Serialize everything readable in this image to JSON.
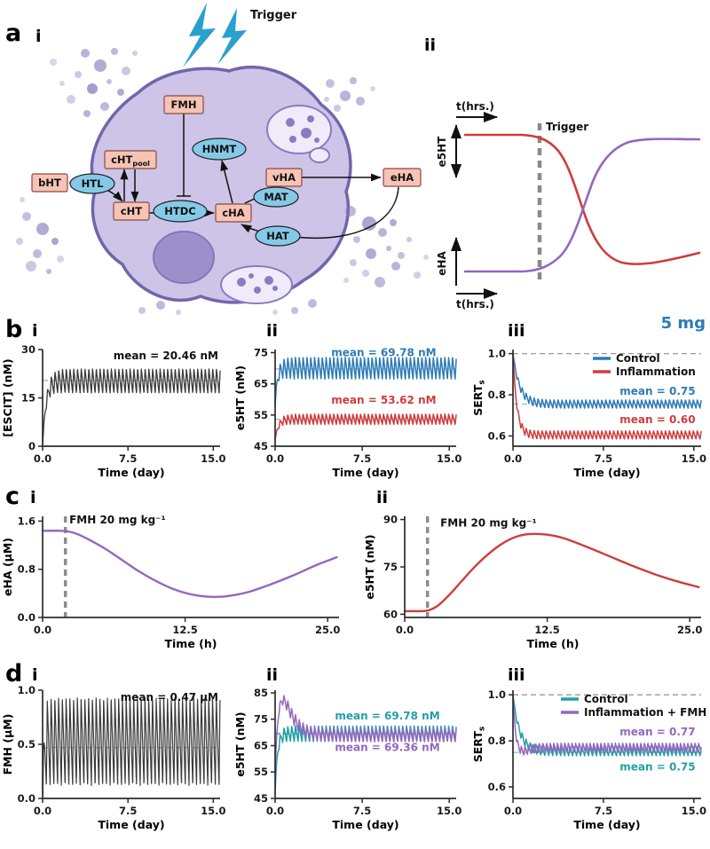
{
  "labels": {
    "a": "a",
    "b": "b",
    "c": "c",
    "d": "d",
    "i": "i",
    "ii": "ii",
    "iii": "iii",
    "dose": "5 mg"
  },
  "panel_a": {
    "trigger": "Trigger",
    "nodes": {
      "bHT": "bHT",
      "HTL": "HTL",
      "cHT": "cHT",
      "cHTpool_main": "cHT",
      "cHTpool_sub": "pool",
      "FMH": "FMH",
      "HNMT": "HNMT",
      "HTDC": "HTDC",
      "cHA": "cHA",
      "MAT": "MAT",
      "vHA": "vHA",
      "eHA": "eHA",
      "HAT": "HAT"
    },
    "schematic": {
      "t_top": "t(hrs.)",
      "y_top": "e5HT",
      "trigger": "Trigger",
      "y_bottom": "eHA",
      "t_bottom": "t(hrs.)"
    }
  },
  "chart_data": [
    {
      "id": "b-i",
      "type": "line",
      "xlabel": "Time (day)",
      "ylabel": "[ESCIT] (nM)",
      "xlim": [
        0,
        15.6
      ],
      "ylim": [
        0,
        30
      ],
      "xticks": [
        [
          0,
          "0.0"
        ],
        [
          7.5,
          "7.5"
        ],
        [
          15,
          "15.0"
        ]
      ],
      "yticks": [
        [
          0,
          "0"
        ],
        [
          15,
          "15"
        ],
        [
          30,
          "30"
        ]
      ],
      "hrefs": [
        {
          "y": 20.46,
          "color": "#8fbcdc"
        }
      ],
      "series": [
        {
          "name": "escitalopram",
          "color": "#3a3a3a",
          "w": 1.3,
          "osc": {
            "start": 0,
            "tau": 0.3,
            "env_tau": 0.5,
            "lo": 16.5,
            "hi": 24,
            "period": 0.33,
            "rise": 0.3
          }
        }
      ],
      "annotations": [
        {
          "text": "mean = 20.46 nM",
          "color": "#111111",
          "xf": 0.99,
          "yf": 0.1,
          "anchor": "end"
        }
      ]
    },
    {
      "id": "b-ii",
      "type": "line",
      "xlabel": "Time (day)",
      "ylabel": "e5HT (nM)",
      "xlim": [
        0,
        15.6
      ],
      "ylim": [
        45,
        76
      ],
      "xticks": [
        [
          0,
          "0.0"
        ],
        [
          7.5,
          "7.5"
        ],
        [
          15,
          "15.0"
        ]
      ],
      "yticks": [
        [
          45,
          "45"
        ],
        [
          55,
          "55"
        ],
        [
          65,
          "65"
        ],
        [
          75,
          "75"
        ]
      ],
      "hrefs": [
        {
          "y": 69.78,
          "color": "#8fbcdc"
        },
        {
          "y": 53.62,
          "color": "#8fbcdc"
        }
      ],
      "series": [
        {
          "name": "control",
          "color": "#2d7bb6",
          "w": 1.5,
          "osc": {
            "start": 58,
            "tau": 0.18,
            "env_tau": 0.35,
            "lo": 66.5,
            "hi": 73.5,
            "period": 0.33,
            "rise": 0.3
          }
        },
        {
          "name": "inflammation",
          "color": "#d13b3c",
          "w": 1.5,
          "osc": {
            "start": 47,
            "tau": 0.28,
            "env_tau": 0.4,
            "lo": 52,
            "hi": 55.3,
            "period": 0.33,
            "rise": 0.3
          }
        }
      ],
      "annotations": [
        {
          "text": "mean = 69.78 nM",
          "color": "#2d7bb6",
          "xf": 0.6,
          "yf": 0.07,
          "anchor": "middle"
        },
        {
          "text": "mean = 53.62 nM",
          "color": "#d13b3c",
          "xf": 0.6,
          "yf": 0.56,
          "anchor": "middle"
        }
      ]
    },
    {
      "id": "b-iii",
      "type": "line",
      "xlabel": "Time (day)",
      "ylabel": "SERT",
      "ylabel_sub": "s",
      "xlim": [
        0,
        15.6
      ],
      "ylim": [
        0.55,
        1.02
      ],
      "xticks": [
        [
          0,
          "0.0"
        ],
        [
          7.5,
          "7.5"
        ],
        [
          15,
          "15.0"
        ]
      ],
      "yticks": [
        [
          0.6,
          "0.6"
        ],
        [
          0.8,
          "0.8"
        ],
        [
          1.0,
          "1.0"
        ]
      ],
      "hrefs": [
        {
          "y": 1.0,
          "color": "#9a9a9a"
        },
        {
          "y": 0.755,
          "color": "#8fbcdc"
        }
      ],
      "series": [
        {
          "name": "control",
          "color": "#2d7bb6",
          "w": 1.5,
          "osc": {
            "start": 1.0,
            "tau": 0.55,
            "env_tau": 0.3,
            "lo": 0.735,
            "hi": 0.775,
            "period": 0.33,
            "rise": 0.3
          }
        },
        {
          "name": "inflammation",
          "color": "#d13b3c",
          "w": 1.5,
          "osc": {
            "start": 1.0,
            "tau": 0.32,
            "env_tau": 0.3,
            "lo": 0.585,
            "hi": 0.625,
            "period": 0.33,
            "rise": 0.3
          }
        }
      ],
      "annotations": [
        {
          "text": "mean = 0.75",
          "color": "#2d7bb6",
          "xf": 0.97,
          "yf": 0.47,
          "anchor": "end"
        },
        {
          "text": "mean = 0.60",
          "color": "#d13b3c",
          "xf": 0.97,
          "yf": 0.76,
          "anchor": "end"
        }
      ],
      "legend": {
        "w": 122,
        "items": [
          {
            "label": "Control",
            "color": "#2d7bb6"
          },
          {
            "label": "Inflammation",
            "color": "#d13b3c"
          }
        ]
      }
    },
    {
      "id": "c-i",
      "type": "line",
      "xlabel": "Time (h)",
      "ylabel": "eHA (µM)",
      "xlim": [
        0,
        26
      ],
      "ylim": [
        0,
        1.68
      ],
      "xticks": [
        [
          0,
          "0.0"
        ],
        [
          12.5,
          "12.5"
        ],
        [
          25,
          "25.0"
        ]
      ],
      "yticks": [
        [
          0,
          "0.0"
        ],
        [
          0.8,
          "0.8"
        ],
        [
          1.6,
          "1.6"
        ]
      ],
      "vrefs": [
        {
          "x": 2,
          "color": "#8c8c8c"
        }
      ],
      "series": [
        {
          "name": "eHA",
          "color": "#9467bd",
          "w": 2.4,
          "smooth": true,
          "pts": {
            "x": [
              0,
              1.5,
              2.2,
              3,
              4,
              5.5,
              7,
              8.5,
              10,
              11.5,
              13,
              14.5,
              16,
              18,
              20,
              22,
              24,
              25.8
            ],
            "y": [
              1.44,
              1.44,
              1.43,
              1.39,
              1.3,
              1.14,
              0.95,
              0.76,
              0.6,
              0.47,
              0.385,
              0.345,
              0.35,
              0.42,
              0.55,
              0.7,
              0.87,
              1.0
            ]
          }
        }
      ],
      "annotations": [
        {
          "text": "FMH 20 mg kg⁻¹",
          "color": "#111111",
          "xf": 0.09,
          "yf": 0.07,
          "anchor": "start"
        }
      ]
    },
    {
      "id": "c-ii",
      "type": "line",
      "xlabel": "Time (h)",
      "ylabel": "e5HT (nM)",
      "xlim": [
        0,
        26
      ],
      "ylim": [
        59,
        91
      ],
      "xticks": [
        [
          0,
          "0.0"
        ],
        [
          12.5,
          "12.5"
        ],
        [
          25,
          "25.0"
        ]
      ],
      "yticks": [
        [
          60,
          "60"
        ],
        [
          75,
          "75"
        ],
        [
          90,
          "90"
        ]
      ],
      "vrefs": [
        {
          "x": 2,
          "color": "#8c8c8c"
        }
      ],
      "series": [
        {
          "name": "e5HT",
          "color": "#d13b3c",
          "w": 2.4,
          "smooth": true,
          "pts": {
            "x": [
              0,
              1.5,
              2.2,
              3,
              4,
              5,
              6,
              7,
              8,
              9,
              10,
              11,
              12.5,
              14,
              16,
              18,
              20,
              22,
              24,
              25.8
            ],
            "y": [
              61,
              61,
              61.4,
              63,
              66.5,
              70.5,
              74.5,
              78,
              81,
              83.3,
              84.8,
              85.4,
              85.2,
              84,
              81.3,
              78.3,
              75.3,
              72.6,
              70.3,
              68.6
            ]
          }
        }
      ],
      "annotations": [
        {
          "text": "FMH 20 mg kg⁻¹",
          "color": "#111111",
          "xf": 0.12,
          "yf": 0.1,
          "anchor": "start"
        }
      ]
    },
    {
      "id": "d-i",
      "type": "line",
      "xlabel": "Time (day)",
      "ylabel": "FMH (µM)",
      "xlim": [
        0,
        15.6
      ],
      "ylim": [
        0,
        1.0
      ],
      "xticks": [
        [
          0,
          "0.0"
        ],
        [
          7.5,
          "7.5"
        ],
        [
          15,
          "15.0"
        ]
      ],
      "yticks": [
        [
          0,
          "0.0"
        ],
        [
          0.5,
          "0.5"
        ],
        [
          1.0,
          "1.0"
        ]
      ],
      "hrefs": [
        {
          "y": 0.47,
          "color": "#8fbcdc"
        }
      ],
      "series": [
        {
          "name": "FMH",
          "color": "#3a3a3a",
          "w": 1.2,
          "osc": {
            "start": 0,
            "tau": 0.12,
            "env_tau": 0.12,
            "lo": 0.12,
            "hi": 0.93,
            "period": 0.33,
            "rise": 0.25
          }
        }
      ],
      "annotations": [
        {
          "text": "mean = 0.47 µM",
          "color": "#111111",
          "xf": 0.99,
          "yf": 0.1,
          "anchor": "end"
        }
      ]
    },
    {
      "id": "d-ii",
      "type": "line",
      "xlabel": "Time (day)",
      "ylabel": "e5HT (nM)",
      "xlim": [
        0,
        15.6
      ],
      "ylim": [
        45,
        86
      ],
      "xticks": [
        [
          0,
          "0.0"
        ],
        [
          7.5,
          "7.5"
        ],
        [
          15,
          "15.0"
        ]
      ],
      "yticks": [
        [
          45,
          "45"
        ],
        [
          55,
          "55"
        ],
        [
          65,
          "65"
        ],
        [
          75,
          "75"
        ],
        [
          85,
          "85"
        ]
      ],
      "hrefs": [
        {
          "y": 69.78,
          "color": "#8fbcdc"
        },
        {
          "y": 69.36,
          "color": "#9a9a9a"
        }
      ],
      "series": [
        {
          "name": "control",
          "color": "#21a0a8",
          "w": 1.5,
          "osc": {
            "start": 47,
            "tau": 0.2,
            "env_tau": 0.35,
            "lo": 66.5,
            "hi": 72.5,
            "period": 0.33,
            "rise": 0.3
          }
        },
        {
          "name": "inflammation-fmh",
          "color": "#9467bd",
          "w": 1.5,
          "osc": {
            "start": 55,
            "tau": 0.3,
            "env_tau": 0.5,
            "lo": 66.5,
            "hi": 71.5,
            "period": 0.33,
            "rise": 0.3,
            "bump": {
              "amp": 15,
              "tau": 0.55
            }
          }
        }
      ],
      "annotations": [
        {
          "text": "mean = 69.78 nM",
          "color": "#21a0a8",
          "xf": 0.62,
          "yf": 0.27,
          "anchor": "middle"
        },
        {
          "text": "mean = 69.36 nM",
          "color": "#9467bd",
          "xf": 0.62,
          "yf": 0.56,
          "anchor": "middle"
        }
      ]
    },
    {
      "id": "d-iii",
      "type": "line",
      "xlabel": "Time (day)",
      "ylabel": "SERT",
      "ylabel_sub": "s",
      "xlim": [
        0,
        15.6
      ],
      "ylim": [
        0.55,
        1.02
      ],
      "xticks": [
        [
          0,
          "0.0"
        ],
        [
          7.5,
          "7.5"
        ],
        [
          15,
          "15.0"
        ]
      ],
      "yticks": [
        [
          0.6,
          "0.6"
        ],
        [
          0.8,
          "0.8"
        ],
        [
          1.0,
          "1.0"
        ]
      ],
      "hrefs": [
        {
          "y": 1.0,
          "color": "#9a9a9a"
        },
        {
          "y": 0.75,
          "color": "#8fbcdc"
        }
      ],
      "series": [
        {
          "name": "control",
          "color": "#21a0a8",
          "w": 1.5,
          "osc": {
            "start": 1.0,
            "tau": 0.55,
            "env_tau": 0.3,
            "lo": 0.735,
            "hi": 0.775,
            "period": 0.33,
            "rise": 0.3
          }
        },
        {
          "name": "inflammation-fmh",
          "color": "#9467bd",
          "w": 1.5,
          "osc": {
            "start": 1.0,
            "tau": 0.4,
            "env_tau": 0.3,
            "lo": 0.75,
            "hi": 0.79,
            "period": 0.3,
            "rise": 0.3,
            "bump": {
              "amp": -0.07,
              "tau": 0.35
            }
          }
        }
      ],
      "annotations": [
        {
          "text": "mean = 0.77",
          "color": "#9467bd",
          "xf": 0.97,
          "yf": 0.42,
          "anchor": "end"
        },
        {
          "text": "mean = 0.75",
          "color": "#21a0a8",
          "xf": 0.97,
          "yf": 0.74,
          "anchor": "end"
        }
      ],
      "legend": {
        "w": 158,
        "items": [
          {
            "label": "Control",
            "color": "#21a0a8"
          },
          {
            "label": "Inflammation + FMH",
            "color": "#9467bd"
          }
        ]
      }
    }
  ]
}
